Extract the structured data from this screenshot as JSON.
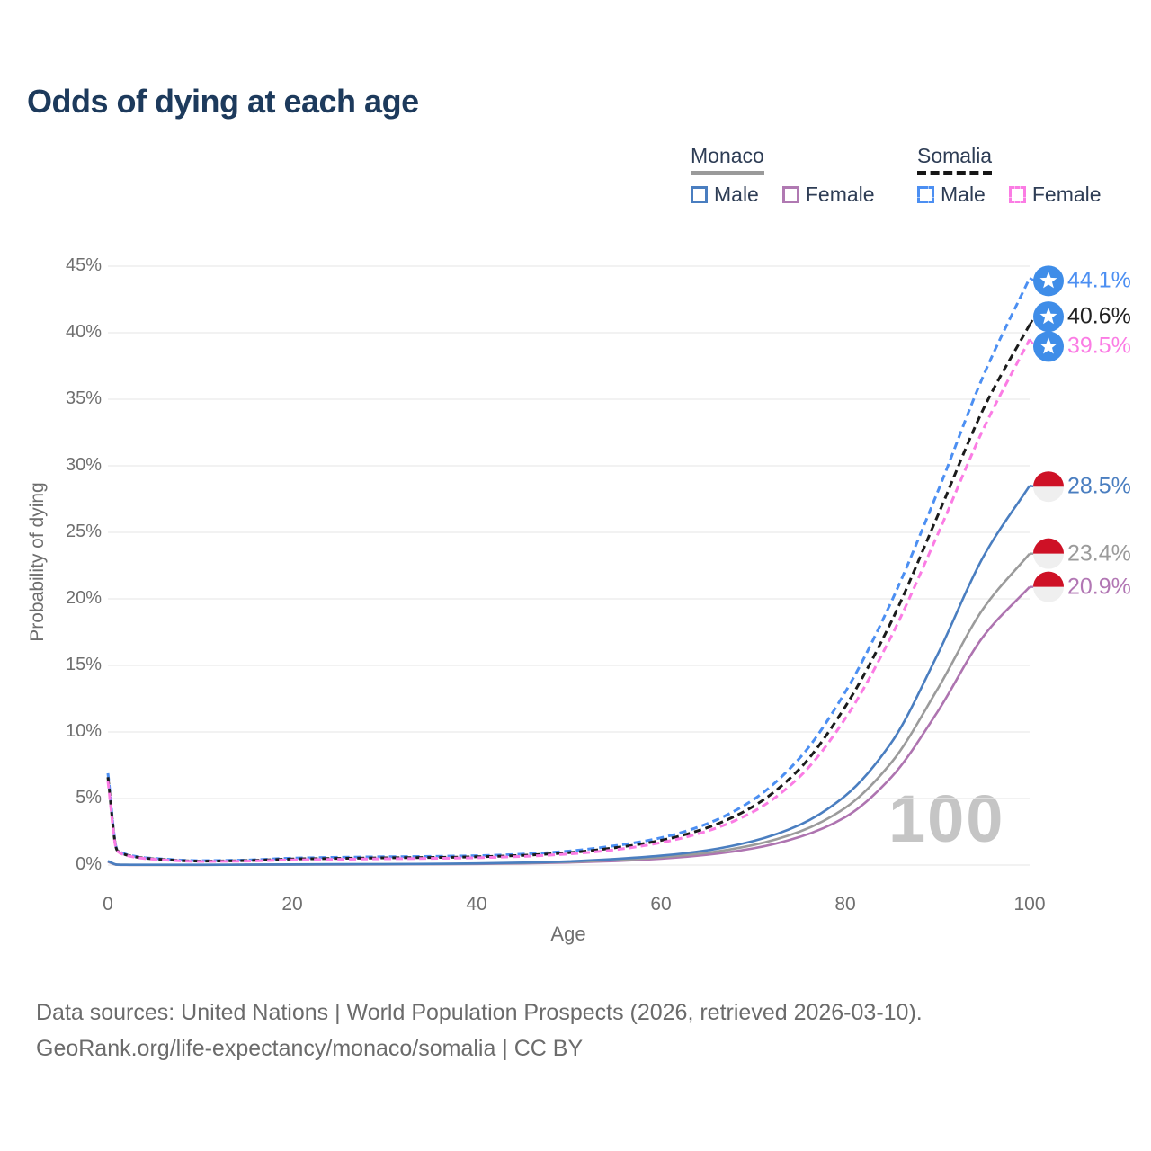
{
  "title": "Odds of dying at each age",
  "watermark": "100",
  "footer": {
    "line1": "Data sources: United Nations | World Population Prospects (2026, retrieved 2026-03-10).",
    "line2": "GeoRank.org/life-expectancy/monaco/somalia | CC BY"
  },
  "colors": {
    "title_text": "#1d3a5c",
    "legend_text": "#2e3d55",
    "tick_text": "#6f6f6f",
    "gridline": "#e9e9e9",
    "watermark": "#c5c5c5",
    "monaco_rule": "#9a9a9a",
    "somalia_rule": "#161616",
    "somalia_flag_blue": "#3f8de8",
    "monaco_flag_red": "#ce1126",
    "monaco_flag_white": "#efefef"
  },
  "legend": {
    "groups": [
      {
        "name": "Monaco",
        "line_style": "solid",
        "rule_color": "#9a9a9a",
        "items": [
          {
            "label": "Male",
            "color": "#4a7ec0",
            "dashed": false
          },
          {
            "label": "Female",
            "color": "#b079b2",
            "dashed": false
          }
        ]
      },
      {
        "name": "Somalia",
        "line_style": "dashed",
        "rule_color": "#161616",
        "items": [
          {
            "label": "Male",
            "color": "#4c8ff2",
            "dashed": true
          },
          {
            "label": "Female",
            "color": "#fb7ce4",
            "dashed": true
          }
        ]
      }
    ]
  },
  "chart_data": {
    "type": "line",
    "title": "Odds of dying at each age",
    "xlabel": "Age",
    "ylabel": "Probability of dying",
    "xlim": [
      0,
      100
    ],
    "ylim": [
      0,
      45
    ],
    "x_ticks": [
      0,
      20,
      40,
      60,
      80,
      100
    ],
    "y_ticks": [
      0,
      5,
      10,
      15,
      20,
      25,
      30,
      35,
      40,
      45
    ],
    "y_tick_suffix": "%",
    "grid": "horizontal",
    "legend_position": "top-right",
    "ages": [
      0,
      1,
      2,
      3,
      4,
      5,
      10,
      15,
      20,
      25,
      30,
      35,
      40,
      45,
      50,
      55,
      60,
      65,
      70,
      75,
      80,
      85,
      90,
      95,
      100
    ],
    "series": [
      {
        "id": "monaco-female",
        "country": "Monaco",
        "sex": "Female",
        "color": "#ae74b0",
        "dashed": false,
        "end_label": "20.9%",
        "end_value": 20.9,
        "label_color": "#b277b4",
        "flag": "monaco",
        "values": [
          0.24,
          0.02,
          0.015,
          0.012,
          0.012,
          0.012,
          0.012,
          0.02,
          0.03,
          0.04,
          0.05,
          0.06,
          0.08,
          0.12,
          0.19,
          0.3,
          0.48,
          0.77,
          1.25,
          2.1,
          3.6,
          6.6,
          11.5,
          17.2,
          20.9
        ]
      },
      {
        "id": "monaco-overall",
        "country": "Monaco",
        "sex": "Both",
        "color": "#9b9b9b",
        "dashed": false,
        "end_label": "23.4%",
        "end_value": 23.4,
        "label_color": "#9b9b9b",
        "flag": "monaco",
        "values": [
          0.27,
          0.025,
          0.018,
          0.015,
          0.015,
          0.015,
          0.015,
          0.025,
          0.04,
          0.05,
          0.06,
          0.075,
          0.1,
          0.15,
          0.23,
          0.37,
          0.58,
          0.92,
          1.5,
          2.5,
          4.3,
          7.7,
          13.2,
          19.3,
          23.4
        ]
      },
      {
        "id": "monaco-male",
        "country": "Monaco",
        "sex": "Male",
        "color": "#4a7ec0",
        "dashed": false,
        "end_label": "28.5%",
        "end_value": 28.5,
        "label_color": "#4a7ec0",
        "flag": "monaco",
        "values": [
          0.3,
          0.03,
          0.02,
          0.02,
          0.02,
          0.02,
          0.02,
          0.03,
          0.05,
          0.06,
          0.07,
          0.09,
          0.12,
          0.18,
          0.28,
          0.45,
          0.7,
          1.1,
          1.8,
          3.0,
          5.2,
          9.2,
          15.8,
          23.2,
          28.5
        ]
      },
      {
        "id": "somalia-male",
        "country": "Somalia",
        "sex": "Male",
        "color": "#4c8ff2",
        "dashed": true,
        "end_label": "44.1%",
        "end_value": 44.1,
        "label_color": "#4c8ff2",
        "flag": "somalia",
        "values": [
          6.9,
          1.15,
          0.8,
          0.65,
          0.55,
          0.5,
          0.33,
          0.38,
          0.52,
          0.58,
          0.62,
          0.65,
          0.7,
          0.82,
          1.05,
          1.45,
          2.05,
          3.1,
          4.9,
          8.0,
          13.0,
          19.8,
          28.0,
          36.8,
          44.1
        ]
      },
      {
        "id": "somalia-overall",
        "country": "Somalia",
        "sex": "Both",
        "color": "#1b1b1b",
        "dashed": true,
        "end_label": "40.6%",
        "end_value": 40.6,
        "label_color": "#222222",
        "flag": "somalia",
        "values": [
          6.6,
          1.1,
          0.76,
          0.61,
          0.52,
          0.46,
          0.3,
          0.34,
          0.45,
          0.5,
          0.54,
          0.57,
          0.62,
          0.73,
          0.93,
          1.3,
          1.85,
          2.8,
          4.4,
          7.2,
          11.9,
          18.3,
          26.2,
          34.3,
          40.6
        ]
      },
      {
        "id": "somalia-female",
        "country": "Somalia",
        "sex": "Female",
        "color": "#fb7ce4",
        "dashed": true,
        "end_label": "39.5%",
        "end_value": 39.5,
        "label_color": "#fb7ce4",
        "flag": "somalia",
        "values": [
          6.3,
          1.05,
          0.72,
          0.58,
          0.49,
          0.43,
          0.27,
          0.3,
          0.39,
          0.43,
          0.47,
          0.5,
          0.55,
          0.65,
          0.83,
          1.15,
          1.68,
          2.55,
          4.0,
          6.6,
          11.0,
          17.2,
          24.8,
          32.8,
          39.5
        ]
      }
    ]
  }
}
